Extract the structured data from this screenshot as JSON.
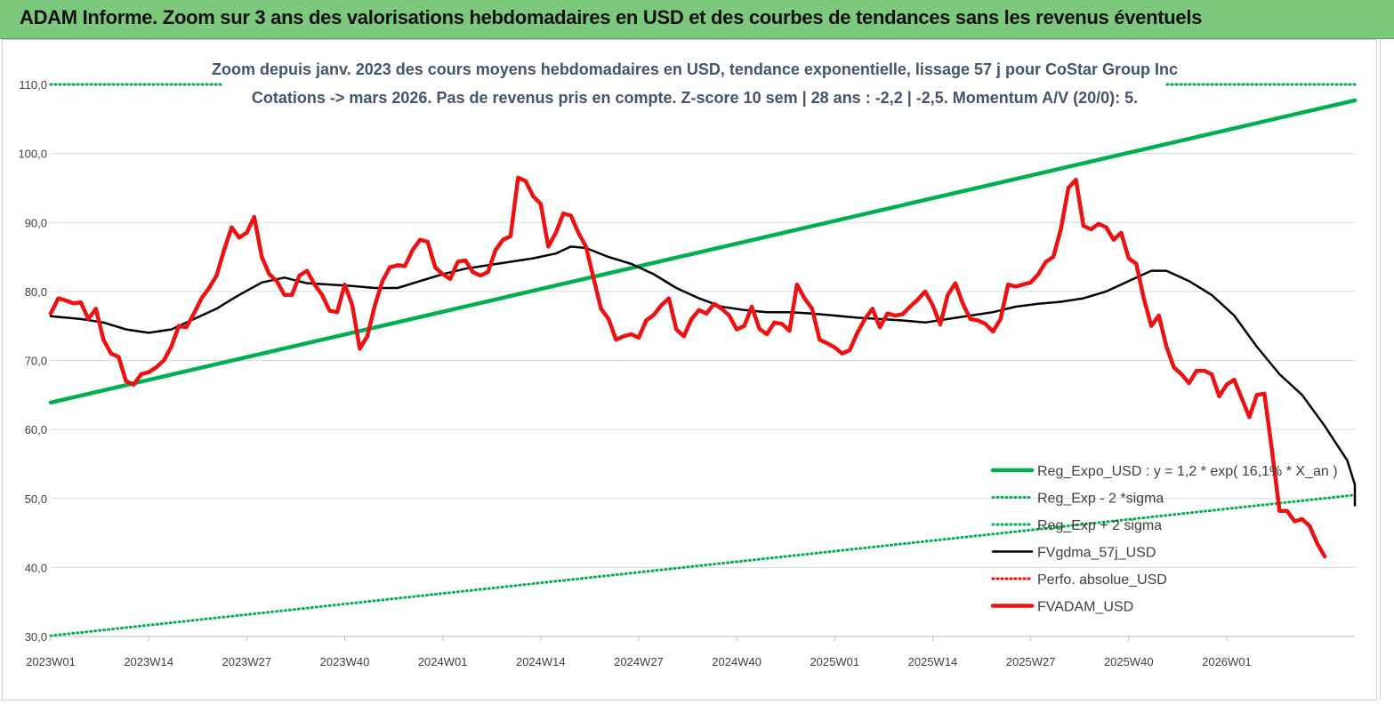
{
  "banner": {
    "title": "ADAM Informe. Zoom sur 3 ans des valorisations hebdomadaires en USD et des courbes de tendances sans les revenus éventuels"
  },
  "chart_data": {
    "type": "line",
    "title": "Zoom depuis janv. 2023 des cours moyens hebdomadaires en USD, tendance exponentielle, lissage 57 j pour CoStar Group Inc",
    "subtitle": "Cotations -> mars 2026. Pas de revenus pris en  compte. Z-score 10 sem  | 28 ans : -2,2 | -2,5. Momentum A/V (20/0): 5.",
    "xlabel": "",
    "ylabel": "",
    "ylim": [
      30,
      110
    ],
    "yticks": [
      "30,0",
      "40,0",
      "50,0",
      "60,0",
      "70,0",
      "80,0",
      "90,0",
      "100,0",
      "110,0"
    ],
    "xticks": [
      "2023W01",
      "2023W14",
      "2023W27",
      "2023W40",
      "2024W01",
      "2024W14",
      "2024W27",
      "2024W40",
      "2025W01",
      "2025W14",
      "2025W27",
      "2025W40",
      "2026W01"
    ],
    "xrange_weeks": [
      0,
      173
    ],
    "grid": "horizontal",
    "legend_position": "bottom-right",
    "series": [
      {
        "name": "Reg_Expo_USD : y = 1,2 * exp( 16,1% * X_an )",
        "color": "#00b050",
        "style": "solid-thick",
        "points": [
          [
            0,
            63.9
          ],
          [
            173,
            107.7
          ]
        ]
      },
      {
        "name": "Reg_Exp - 2 *sigma",
        "color": "#00b050",
        "style": "dotted",
        "points": [
          [
            0,
            30.1
          ],
          [
            173,
            50.5
          ]
        ]
      },
      {
        "name": "Reg_Exp + 2 sigma",
        "color": "#00b050",
        "style": "dotted",
        "points": [
          [
            0,
            110.0
          ],
          [
            173,
            110.0
          ]
        ]
      },
      {
        "name": "FVgdma_57j_USD",
        "color": "#000000",
        "style": "solid",
        "points": [
          [
            0,
            76.4
          ],
          [
            4,
            76.0
          ],
          [
            7,
            75.5
          ],
          [
            10,
            74.5
          ],
          [
            13,
            74.0
          ],
          [
            16,
            74.5
          ],
          [
            19,
            76.0
          ],
          [
            22,
            77.5
          ],
          [
            25,
            79.5
          ],
          [
            28,
            81.3
          ],
          [
            31,
            82.0
          ],
          [
            34,
            81.2
          ],
          [
            37,
            81.0
          ],
          [
            40,
            80.8
          ],
          [
            43,
            80.5
          ],
          [
            46,
            80.5
          ],
          [
            49,
            81.5
          ],
          [
            52,
            82.5
          ],
          [
            55,
            83.3
          ],
          [
            58,
            83.8
          ],
          [
            61,
            84.3
          ],
          [
            64,
            84.8
          ],
          [
            67,
            85.5
          ],
          [
            69,
            86.5
          ],
          [
            71,
            86.3
          ],
          [
            74,
            85.0
          ],
          [
            77,
            84.0
          ],
          [
            80,
            82.5
          ],
          [
            83,
            80.5
          ],
          [
            86,
            79.0
          ],
          [
            89,
            77.8
          ],
          [
            92,
            77.3
          ],
          [
            95,
            77.0
          ],
          [
            98,
            77.0
          ],
          [
            101,
            76.8
          ],
          [
            104,
            76.5
          ],
          [
            107,
            76.2
          ],
          [
            110,
            76.0
          ],
          [
            113,
            75.8
          ],
          [
            116,
            75.5
          ],
          [
            119,
            76.0
          ],
          [
            122,
            76.5
          ],
          [
            125,
            77.0
          ],
          [
            128,
            77.8
          ],
          [
            131,
            78.2
          ],
          [
            134,
            78.5
          ],
          [
            137,
            79.0
          ],
          [
            140,
            80.0
          ],
          [
            143,
            81.5
          ],
          [
            146,
            83.0
          ],
          [
            148,
            83.0
          ],
          [
            151,
            81.5
          ],
          [
            154,
            79.5
          ],
          [
            157,
            76.5
          ],
          [
            160,
            72.0
          ],
          [
            163,
            68.0
          ],
          [
            166,
            65.0
          ],
          [
            169,
            60.5
          ],
          [
            172,
            55.5
          ],
          [
            175,
            52.0
          ],
          [
            178,
            49.0
          ]
        ]
      },
      {
        "name": "Perfo. absolue_USD",
        "color": "#ff0000",
        "style": "dotted",
        "points": []
      },
      {
        "name": "FVADAM_USD",
        "color": "#ee1111",
        "style": "solid-thick",
        "points": [
          [
            0,
            76.8
          ],
          [
            1,
            79.0
          ],
          [
            2,
            78.7
          ],
          [
            3,
            78.3
          ],
          [
            4,
            78.4
          ],
          [
            5,
            76.0
          ],
          [
            6,
            77.5
          ],
          [
            7,
            73.0
          ],
          [
            8,
            71.0
          ],
          [
            9,
            70.5
          ],
          [
            10,
            67.0
          ],
          [
            11,
            66.5
          ],
          [
            12,
            68.0
          ],
          [
            13,
            68.3
          ],
          [
            14,
            69.0
          ],
          [
            15,
            70.0
          ],
          [
            16,
            72.0
          ],
          [
            17,
            75.0
          ],
          [
            18,
            74.8
          ],
          [
            19,
            76.8
          ],
          [
            20,
            79.0
          ],
          [
            21,
            80.5
          ],
          [
            22,
            82.3
          ],
          [
            23,
            86.0
          ],
          [
            24,
            89.3
          ],
          [
            25,
            87.8
          ],
          [
            26,
            88.5
          ],
          [
            27,
            90.8
          ],
          [
            28,
            85.0
          ],
          [
            29,
            82.5
          ],
          [
            30,
            81.5
          ],
          [
            31,
            79.5
          ],
          [
            32,
            79.5
          ],
          [
            33,
            82.3
          ],
          [
            34,
            83.0
          ],
          [
            35,
            81.0
          ],
          [
            36,
            79.5
          ],
          [
            37,
            77.2
          ],
          [
            38,
            77.0
          ],
          [
            39,
            81.0
          ],
          [
            40,
            78.0
          ],
          [
            41,
            71.7
          ],
          [
            42,
            73.5
          ],
          [
            43,
            78.0
          ],
          [
            44,
            81.5
          ],
          [
            45,
            83.5
          ],
          [
            46,
            83.8
          ],
          [
            47,
            83.7
          ],
          [
            48,
            86.0
          ],
          [
            49,
            87.5
          ],
          [
            50,
            87.2
          ],
          [
            51,
            83.5
          ],
          [
            52,
            82.5
          ],
          [
            53,
            81.8
          ],
          [
            54,
            84.3
          ],
          [
            55,
            84.5
          ],
          [
            56,
            82.8
          ],
          [
            57,
            82.3
          ],
          [
            58,
            82.8
          ],
          [
            59,
            86.0
          ],
          [
            60,
            87.5
          ],
          [
            61,
            88.0
          ],
          [
            62,
            96.5
          ],
          [
            63,
            96.0
          ],
          [
            64,
            93.8
          ],
          [
            65,
            92.7
          ],
          [
            66,
            86.5
          ],
          [
            67,
            88.5
          ],
          [
            68,
            91.3
          ],
          [
            69,
            91.0
          ],
          [
            70,
            88.5
          ],
          [
            71,
            86.5
          ],
          [
            72,
            82.0
          ],
          [
            73,
            77.5
          ],
          [
            74,
            76.0
          ],
          [
            75,
            73.0
          ],
          [
            76,
            73.5
          ],
          [
            77,
            73.8
          ],
          [
            78,
            73.3
          ],
          [
            79,
            75.8
          ],
          [
            80,
            76.6
          ],
          [
            81,
            78.0
          ],
          [
            82,
            79.0
          ],
          [
            83,
            74.5
          ],
          [
            84,
            73.5
          ],
          [
            85,
            76.0
          ],
          [
            86,
            77.3
          ],
          [
            87,
            76.8
          ],
          [
            88,
            78.2
          ],
          [
            89,
            77.5
          ],
          [
            90,
            76.5
          ],
          [
            91,
            74.5
          ],
          [
            92,
            75.0
          ],
          [
            93,
            77.8
          ],
          [
            94,
            74.6
          ],
          [
            95,
            73.8
          ],
          [
            96,
            75.5
          ],
          [
            97,
            75.3
          ],
          [
            98,
            74.3
          ],
          [
            99,
            81.0
          ],
          [
            100,
            79.0
          ],
          [
            101,
            77.5
          ],
          [
            102,
            73.0
          ],
          [
            103,
            72.5
          ],
          [
            104,
            71.9
          ],
          [
            105,
            71.0
          ],
          [
            106,
            71.5
          ],
          [
            107,
            74.0
          ],
          [
            108,
            76.0
          ],
          [
            109,
            77.5
          ],
          [
            110,
            74.8
          ],
          [
            111,
            76.8
          ],
          [
            112,
            76.5
          ],
          [
            113,
            76.7
          ],
          [
            114,
            77.8
          ],
          [
            115,
            78.8
          ],
          [
            116,
            80.0
          ],
          [
            117,
            78.0
          ],
          [
            118,
            75.2
          ],
          [
            119,
            79.5
          ],
          [
            120,
            81.2
          ],
          [
            121,
            78.2
          ],
          [
            122,
            76.0
          ],
          [
            123,
            75.8
          ],
          [
            124,
            75.3
          ],
          [
            125,
            74.2
          ],
          [
            126,
            76.0
          ],
          [
            127,
            81.0
          ],
          [
            128,
            80.7
          ],
          [
            129,
            81.0
          ],
          [
            130,
            81.3
          ],
          [
            131,
            82.5
          ],
          [
            132,
            84.3
          ],
          [
            133,
            85.0
          ],
          [
            134,
            89.0
          ],
          [
            135,
            95.0
          ],
          [
            136,
            96.2
          ],
          [
            137,
            89.5
          ],
          [
            138,
            89.0
          ],
          [
            139,
            89.8
          ],
          [
            140,
            89.3
          ],
          [
            141,
            87.5
          ],
          [
            142,
            88.5
          ],
          [
            143,
            84.8
          ],
          [
            144,
            84.0
          ],
          [
            145,
            79.0
          ],
          [
            146,
            75.0
          ],
          [
            147,
            76.5
          ],
          [
            148,
            72.0
          ],
          [
            149,
            69.0
          ],
          [
            150,
            68.0
          ],
          [
            151,
            66.7
          ],
          [
            152,
            68.5
          ],
          [
            153,
            68.5
          ],
          [
            154,
            68.0
          ],
          [
            155,
            64.8
          ],
          [
            156,
            66.5
          ],
          [
            157,
            67.2
          ],
          [
            158,
            64.5
          ],
          [
            159,
            61.8
          ],
          [
            160,
            65.0
          ],
          [
            161,
            65.2
          ],
          [
            162,
            57.0
          ],
          [
            163,
            48.2
          ],
          [
            164,
            48.2
          ],
          [
            165,
            46.7
          ],
          [
            166,
            47.0
          ],
          [
            167,
            46.0
          ],
          [
            168,
            43.5
          ],
          [
            169,
            41.6
          ]
        ]
      }
    ]
  }
}
